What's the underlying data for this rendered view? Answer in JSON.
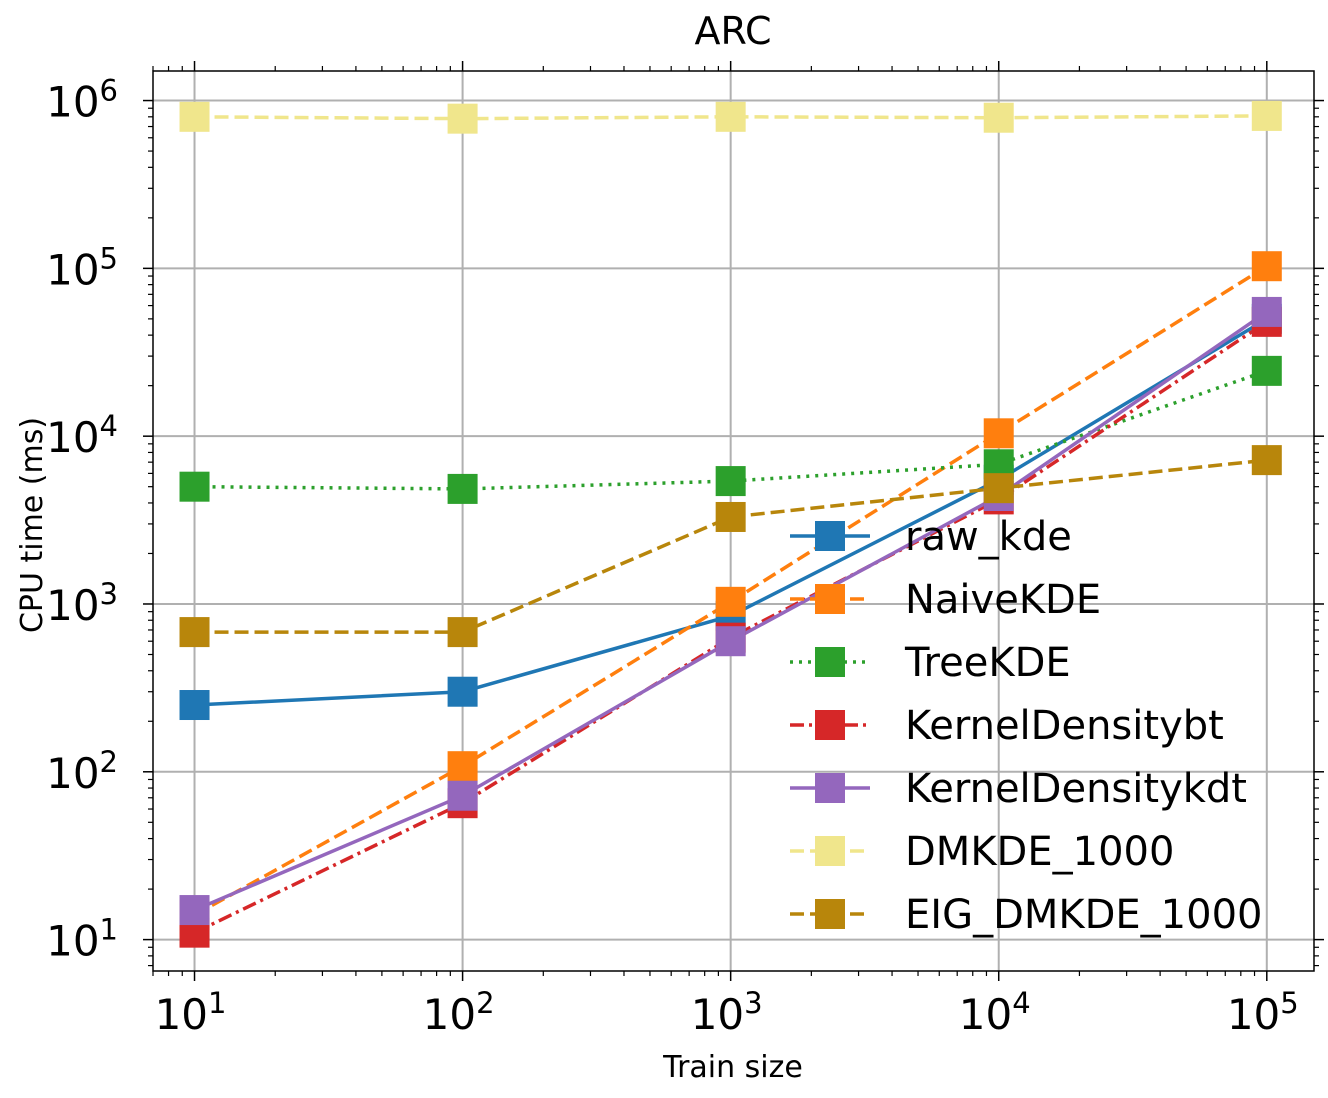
{
  "chart_data": {
    "type": "line",
    "title": "ARC",
    "xlabel": "Train size",
    "ylabel": "CPU time (ms)",
    "xscale": "log",
    "yscale": "log",
    "xlim": [
      7,
      150000
    ],
    "ylim": [
      6.5,
      1500000
    ],
    "grid": true,
    "legend_position": "lower-right",
    "x": [
      10,
      100,
      1000,
      10000,
      100000
    ],
    "x_ticks": [
      {
        "base": "10",
        "exp": "1",
        "value": 10
      },
      {
        "base": "10",
        "exp": "2",
        "value": 100
      },
      {
        "base": "10",
        "exp": "3",
        "value": 1000
      },
      {
        "base": "10",
        "exp": "4",
        "value": 10000
      },
      {
        "base": "10",
        "exp": "5",
        "value": 100000
      }
    ],
    "y_ticks": [
      {
        "base": "10",
        "exp": "1",
        "value": 10
      },
      {
        "base": "10",
        "exp": "2",
        "value": 100
      },
      {
        "base": "10",
        "exp": "3",
        "value": 1000
      },
      {
        "base": "10",
        "exp": "4",
        "value": 10000
      },
      {
        "base": "10",
        "exp": "5",
        "value": 100000
      },
      {
        "base": "10",
        "exp": "6",
        "value": 1000000
      }
    ],
    "series": [
      {
        "name": "raw_kde",
        "color": "#1f77b4",
        "dash": "solid",
        "values": [
          250,
          300,
          850,
          5500,
          50000
        ]
      },
      {
        "name": "NaiveKDE",
        "color": "#ff7f0e",
        "dash": "dashed",
        "values": [
          14,
          108,
          1030,
          10400,
          103000
        ]
      },
      {
        "name": "TreeKDE",
        "color": "#2ca02c",
        "dash": "dotted",
        "values": [
          5000,
          4850,
          5400,
          6800,
          24500
        ]
      },
      {
        "name": "KernelDensitybt",
        "color": "#d62728",
        "dash": "dashdot",
        "values": [
          11,
          65,
          630,
          4200,
          48000
        ]
      },
      {
        "name": "KernelDensitykdt",
        "color": "#9467bd",
        "dash": "solid",
        "values": [
          15,
          72,
          600,
          4400,
          55000
        ]
      },
      {
        "name": "DMKDE_1000",
        "color": "#f0e68c",
        "dash": "dashed",
        "values": [
          800000,
          780000,
          800000,
          790000,
          810000
        ]
      },
      {
        "name": "EIG_DMKDE_1000",
        "color": "#b8860b",
        "dash": "dashed",
        "values": [
          680,
          680,
          3300,
          4900,
          7200
        ]
      }
    ]
  }
}
